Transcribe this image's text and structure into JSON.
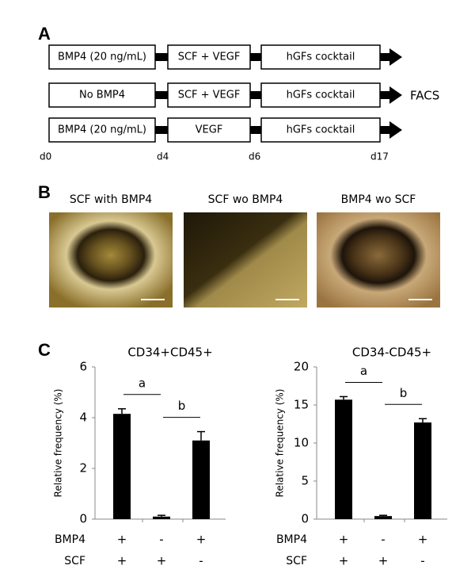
{
  "panel_labels": [
    "A",
    "B",
    "C"
  ],
  "protocol": {
    "rows": [
      {
        "steps": [
          "BMP4 (20 ng/mL)",
          "SCF + VEGF",
          "hGFs cocktail"
        ]
      },
      {
        "steps": [
          "No BMP4",
          "SCF + VEGF",
          "hGFs cocktail"
        ],
        "end_label": "FACS"
      },
      {
        "steps": [
          "BMP4 (20 ng/mL)",
          "VEGF",
          "hGFs cocktail"
        ]
      }
    ],
    "days": [
      "d0",
      "d4",
      "d6",
      "d17"
    ]
  },
  "images": [
    {
      "caption": "SCF with BMP4"
    },
    {
      "caption": "SCF wo BMP4"
    },
    {
      "caption": "BMP4 wo SCF"
    }
  ],
  "chart_data": [
    {
      "type": "bar",
      "title": "CD34+CD45+",
      "y_label": "Relative frequency (%)",
      "values": [
        4.15,
        0.1,
        3.1
      ],
      "errors": [
        0.2,
        0.05,
        0.35
      ],
      "color": "#000000",
      "ylim": [
        0,
        6
      ],
      "yticks": [
        0,
        2,
        4,
        6
      ],
      "annotations": [
        {
          "label": "a"
        },
        {
          "label": "b"
        }
      ],
      "condition_rows": [
        {
          "name": "BMP4",
          "values": [
            "+",
            "-",
            "+"
          ]
        },
        {
          "name": "SCF",
          "values": [
            "+",
            "+",
            "-"
          ]
        }
      ]
    },
    {
      "type": "bar",
      "title": "CD34-CD45+",
      "y_label": "Relative frequency (%)",
      "values": [
        15.7,
        0.4,
        12.7
      ],
      "errors": [
        0.4,
        0.1,
        0.5
      ],
      "color": "#000000",
      "ylim": [
        0,
        20
      ],
      "yticks": [
        0,
        5,
        10,
        15,
        20
      ],
      "annotations": [
        {
          "label": "a"
        },
        {
          "label": "b"
        }
      ],
      "condition_rows": [
        {
          "name": "BMP4",
          "values": [
            "+",
            "-",
            "+"
          ]
        },
        {
          "name": "SCF",
          "values": [
            "+",
            "+",
            "-"
          ]
        }
      ]
    }
  ]
}
